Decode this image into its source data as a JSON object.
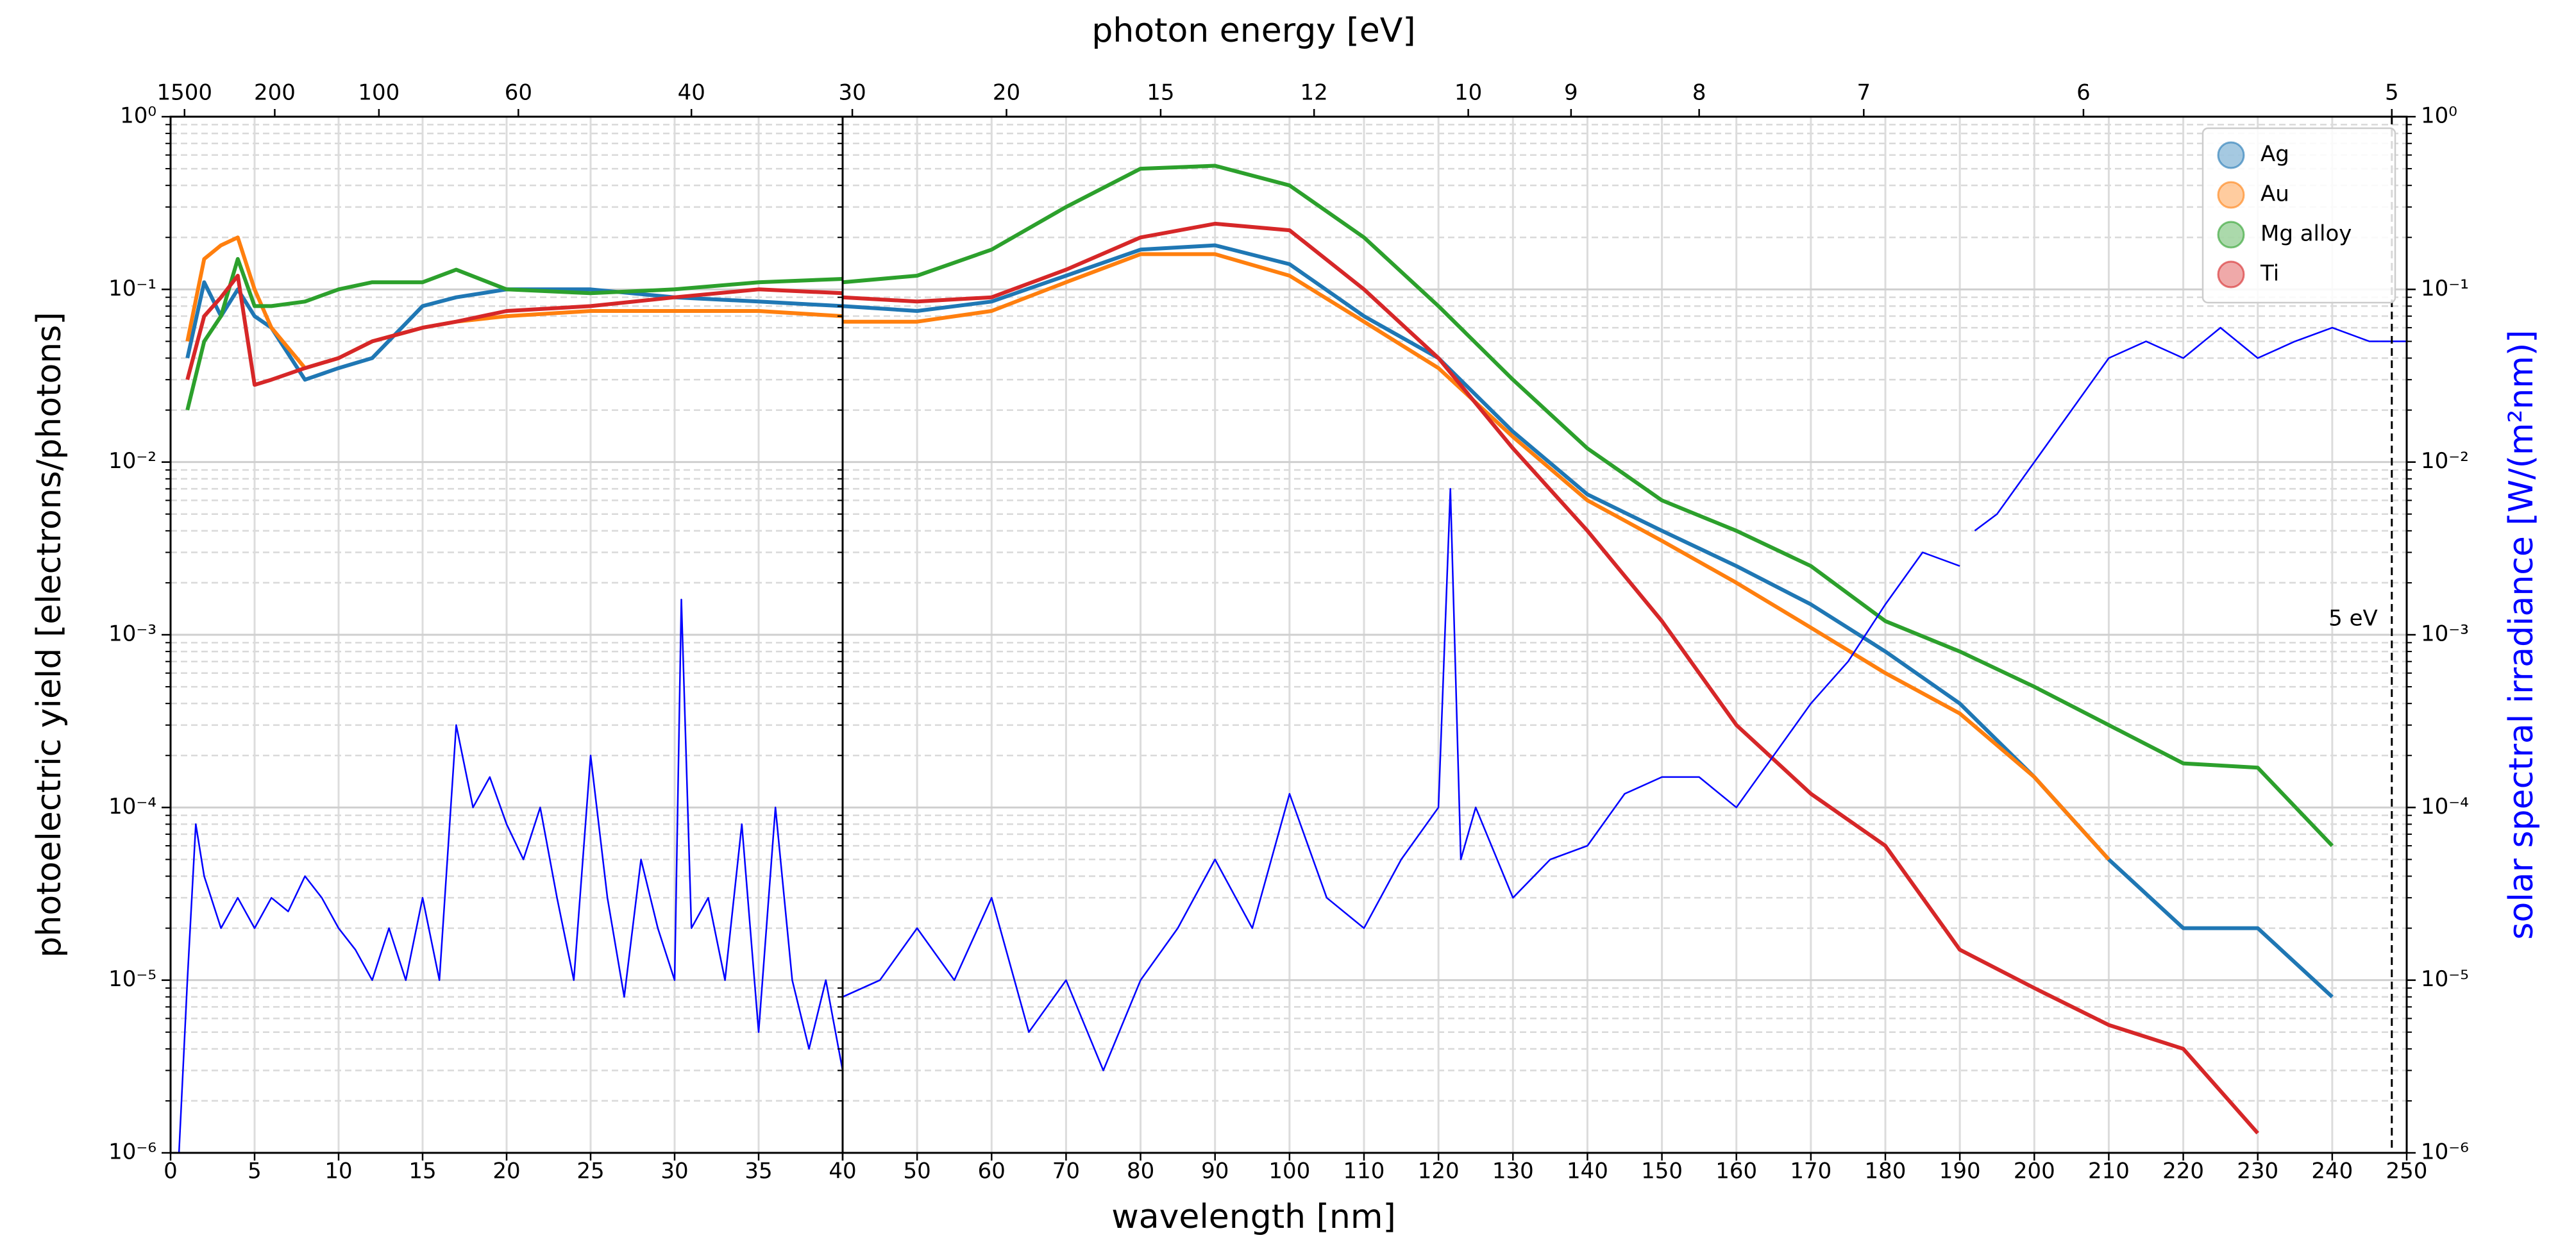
{
  "chart_data": [
    {
      "type": "line",
      "xlabel": "wavelength [nm]",
      "x2label": "photon energy [eV]",
      "ylabel": "photoelectric yield [electrons/photons]",
      "log_y": true,
      "grid": true,
      "xlim": [
        0,
        40
      ],
      "xticks": [
        0,
        5,
        10,
        15,
        20,
        25,
        30,
        35,
        40
      ],
      "x2ticks": [
        {
          "value": 0.83,
          "label": "1500"
        },
        {
          "value": 6.2,
          "label": "200"
        },
        {
          "value": 12.4,
          "label": "100"
        },
        {
          "value": 20.7,
          "label": "60"
        },
        {
          "value": 31,
          "label": "40"
        }
      ],
      "ylim": [
        1e-06,
        1
      ],
      "yticks": [
        {
          "value": 1e-06,
          "label": "10⁻⁶"
        },
        {
          "value": 1e-05,
          "label": "10⁻⁵"
        },
        {
          "value": 0.0001,
          "label": "10⁻⁴"
        },
        {
          "value": 0.001,
          "label": "10⁻³"
        },
        {
          "value": 0.01,
          "label": "10⁻²"
        },
        {
          "value": 0.1,
          "label": "10⁻¹"
        },
        {
          "value": 1,
          "label": "10⁰"
        }
      ],
      "y2lim": [
        1e-06,
        1
      ],
      "x": [
        1,
        2,
        3,
        4,
        5,
        6,
        8,
        10,
        12,
        15,
        17,
        20,
        25,
        30,
        35,
        40
      ],
      "series": [
        {
          "color": "#1f77b4",
          "values": [
            0.04,
            0.11,
            0.07,
            0.1,
            0.07,
            0.06,
            0.03,
            0.035,
            0.04,
            0.08,
            0.09,
            0.1,
            0.1,
            0.09,
            0.085,
            0.08
          ]
        },
        {
          "color": "#ff7f0e",
          "values": [
            0.05,
            0.15,
            0.18,
            0.2,
            0.1,
            0.06,
            0.035,
            0.04,
            0.05,
            0.06,
            0.065,
            0.07,
            0.075,
            0.075,
            0.075,
            0.07
          ]
        },
        {
          "color": "#2ca02c",
          "values": [
            0.02,
            0.05,
            0.07,
            0.15,
            0.08,
            0.08,
            0.085,
            0.1,
            0.11,
            0.11,
            0.13,
            0.1,
            0.095,
            0.1,
            0.11,
            0.115
          ]
        },
        {
          "color": "#d62728",
          "values": [
            0.03,
            0.07,
            0.09,
            0.12,
            0.028,
            0.03,
            0.035,
            0.04,
            0.05,
            0.06,
            0.065,
            0.075,
            0.08,
            0.09,
            0.1,
            0.095
          ]
        },
        {
          "color": "#0000ff",
          "axis": "y2",
          "x": [
            0.5,
            1,
            1.5,
            2,
            3,
            4,
            5,
            6,
            7,
            8,
            9,
            10,
            11,
            12,
            13,
            14,
            15,
            16,
            17,
            18,
            19,
            20,
            21,
            22,
            23,
            24,
            25,
            26,
            27,
            28,
            29,
            30,
            30.4,
            31,
            32,
            33,
            34,
            35,
            36,
            37,
            38,
            39,
            40
          ],
          "values": [
            1e-06,
            1e-05,
            8e-05,
            4e-05,
            2e-05,
            3e-05,
            2e-05,
            3e-05,
            2.5e-05,
            4e-05,
            3e-05,
            2e-05,
            1.5e-05,
            1e-05,
            2e-05,
            1e-05,
            3e-05,
            1e-05,
            0.0003,
            0.0001,
            0.00015,
            8e-05,
            5e-05,
            0.0001,
            3e-05,
            1e-05,
            0.0002,
            3e-05,
            8e-06,
            5e-05,
            2e-05,
            1e-05,
            0.0016,
            2e-05,
            3e-05,
            1e-05,
            8e-05,
            5e-06,
            0.0001,
            1e-05,
            4e-06,
            1e-05,
            3e-06
          ]
        }
      ]
    },
    {
      "type": "line",
      "y2label": "solar spectral irradiance [W/(m²nm)]",
      "log_y": true,
      "grid": true,
      "legend": "upper right",
      "xlim": [
        40,
        250
      ],
      "xticks": [
        40,
        50,
        60,
        70,
        80,
        90,
        100,
        110,
        120,
        130,
        140,
        150,
        160,
        170,
        180,
        190,
        200,
        210,
        220,
        230,
        240,
        250
      ],
      "x2ticks": [
        {
          "value": 41.3,
          "label": "30"
        },
        {
          "value": 62,
          "label": "20"
        },
        {
          "value": 82.7,
          "label": "15"
        },
        {
          "value": 103.3,
          "label": "12"
        },
        {
          "value": 124,
          "label": "10"
        },
        {
          "value": 137.8,
          "label": "9"
        },
        {
          "value": 155,
          "label": "8"
        },
        {
          "value": 177.1,
          "label": "7"
        },
        {
          "value": 206.6,
          "label": "6"
        },
        {
          "value": 248,
          "label": "5"
        }
      ],
      "ylim": [
        1e-06,
        1
      ],
      "y2lim": [
        1e-06,
        1
      ],
      "y2ticks": [
        {
          "value": 1e-06,
          "label": "10⁻⁶"
        },
        {
          "value": 1e-05,
          "label": "10⁻⁵"
        },
        {
          "value": 0.0001,
          "label": "10⁻⁴"
        },
        {
          "value": 0.001,
          "label": "10⁻³"
        },
        {
          "value": 0.01,
          "label": "10⁻²"
        },
        {
          "value": 0.1,
          "label": "10⁻¹"
        },
        {
          "value": 1,
          "label": "10⁰"
        }
      ],
      "annotations": [
        {
          "text": "5 eV",
          "x": 248
        }
      ],
      "x": [
        40,
        50,
        60,
        70,
        80,
        90,
        100,
        110,
        120,
        130,
        140,
        150,
        160,
        170,
        180,
        190,
        200,
        210,
        220,
        230,
        240
      ],
      "series": [
        {
          "name": "Ag",
          "color": "#1f77b4",
          "values": [
            0.08,
            0.075,
            0.085,
            0.12,
            0.17,
            0.18,
            0.14,
            0.07,
            0.04,
            0.015,
            0.0065,
            0.004,
            0.0025,
            0.0015,
            0.0008,
            0.0004,
            0.00015,
            5e-05,
            2e-05,
            2e-05,
            8e-06
          ]
        },
        {
          "name": "Au",
          "color": "#ff7f0e",
          "values": [
            0.065,
            0.065,
            0.075,
            0.11,
            0.16,
            0.16,
            0.12,
            0.065,
            0.035,
            0.014,
            0.006,
            0.0035,
            0.002,
            0.0011,
            0.0006,
            0.00035,
            0.00015,
            5e-05,
            null,
            null,
            null
          ]
        },
        {
          "name": "Mg alloy",
          "color": "#2ca02c",
          "values": [
            0.11,
            0.12,
            0.17,
            0.3,
            0.5,
            0.52,
            0.4,
            0.2,
            0.08,
            0.03,
            0.012,
            0.006,
            0.004,
            0.0025,
            0.0012,
            0.0008,
            0.0005,
            0.0003,
            0.00018,
            0.00017,
            6e-05
          ]
        },
        {
          "name": "Ti",
          "color": "#d62728",
          "values": [
            0.09,
            0.085,
            0.09,
            0.13,
            0.2,
            0.24,
            0.22,
            0.1,
            0.04,
            0.012,
            0.004,
            0.0012,
            0.0003,
            0.00012,
            6e-05,
            1.5e-05,
            9e-06,
            5.5e-06,
            4e-06,
            1.3e-06,
            null
          ]
        },
        {
          "color": "#0000ff",
          "axis": "y2",
          "x": [
            40,
            45,
            50,
            55,
            60,
            65,
            70,
            75,
            80,
            85,
            90,
            95,
            100,
            105,
            110,
            115,
            120,
            121.6,
            123,
            125,
            130,
            135,
            140,
            145,
            150,
            155,
            160,
            165,
            170,
            175,
            180,
            185,
            190,
            191,
            192,
            195,
            200,
            205,
            210,
            215,
            220,
            225,
            230,
            235,
            240,
            245,
            250
          ],
          "values": [
            8e-06,
            1e-05,
            2e-05,
            1e-05,
            3e-05,
            5e-06,
            1e-05,
            3e-06,
            1e-05,
            2e-05,
            5e-05,
            2e-05,
            0.00012,
            3e-05,
            2e-05,
            5e-05,
            0.0001,
            0.007,
            5e-05,
            0.0001,
            3e-05,
            5e-05,
            6e-05,
            0.00012,
            0.00015,
            0.00015,
            0.0001,
            0.0002,
            0.0004,
            0.0007,
            0.0015,
            0.003,
            0.0025,
            null,
            0.004,
            0.005,
            0.01,
            0.02,
            0.04,
            0.05,
            0.04,
            0.06,
            0.04,
            0.05,
            0.06,
            0.05,
            0.05
          ]
        }
      ]
    }
  ]
}
